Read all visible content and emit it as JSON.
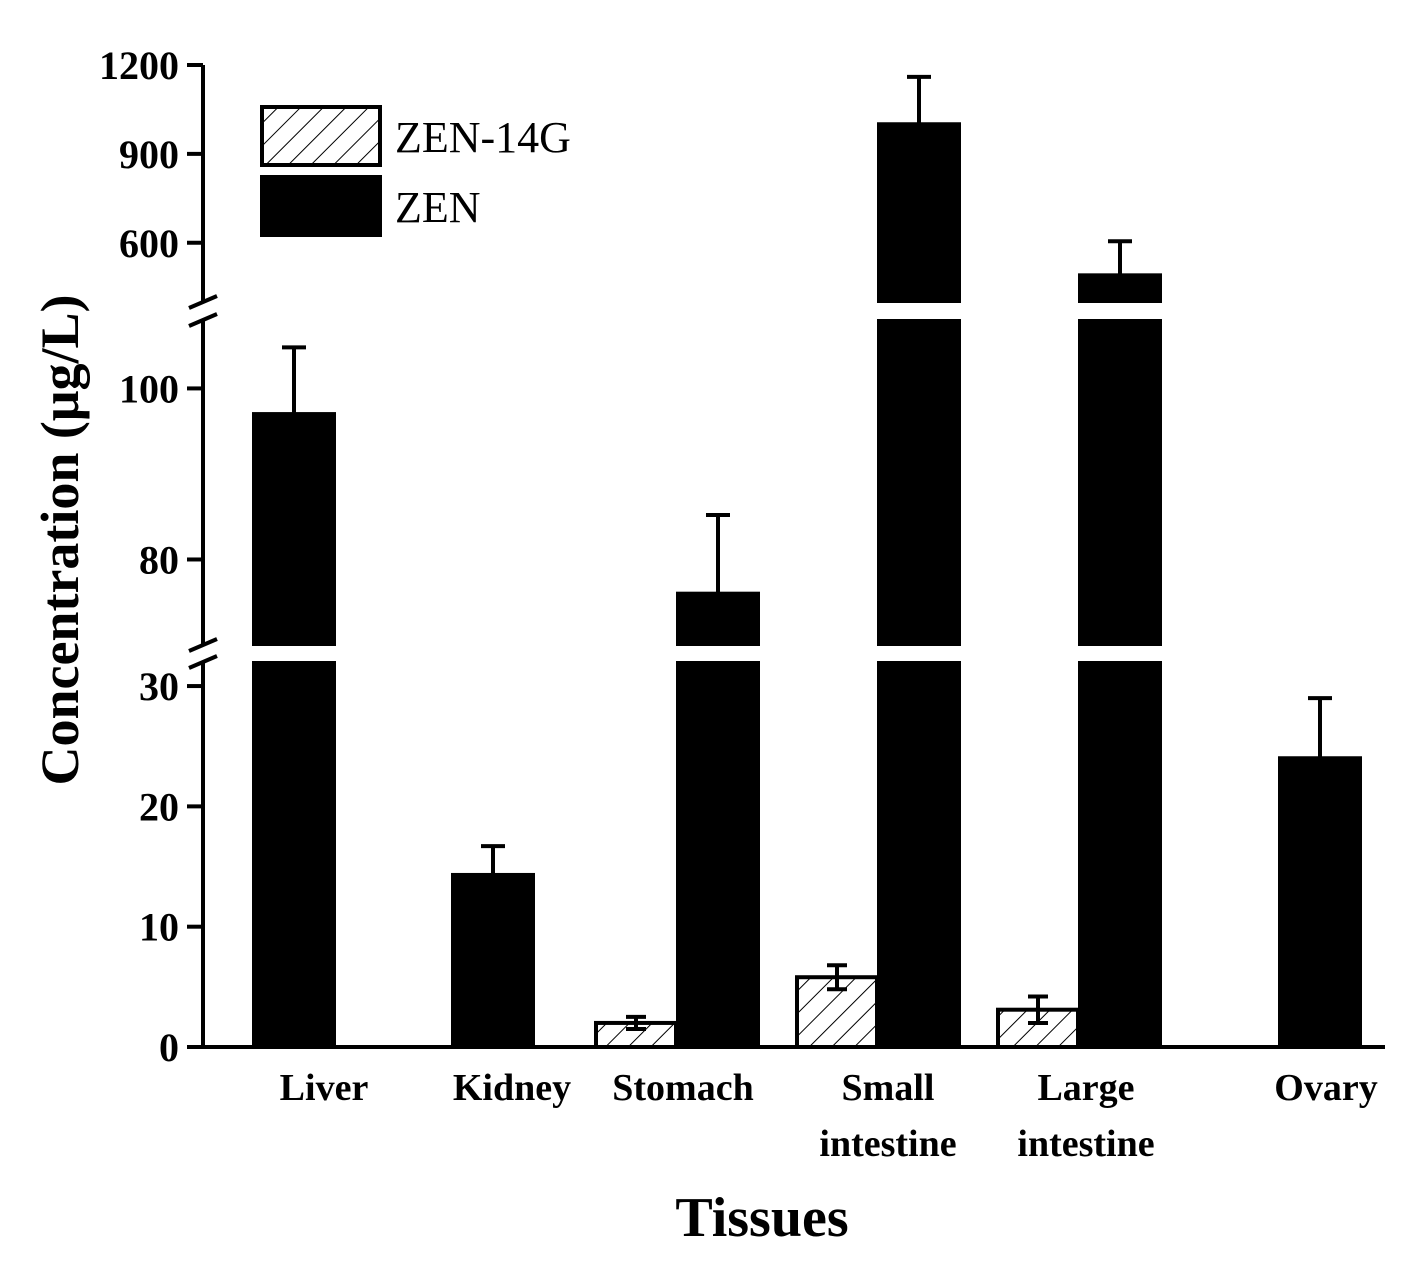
{
  "chart_data": {
    "type": "bar",
    "title": "",
    "xlabel": "Tissues",
    "ylabel": "Concentration (μg/L)",
    "categories": [
      [
        "Liver"
      ],
      [
        "Kidney"
      ],
      [
        "Stomach"
      ],
      [
        "Small",
        "intestine"
      ],
      [
        "Large",
        "intestine"
      ],
      [
        "Ovary"
      ]
    ],
    "series": [
      {
        "name": "ZEN-14G",
        "pattern": "hatched",
        "values": [
          null,
          null,
          2.0,
          5.8,
          3.1,
          null
        ],
        "errors": [
          null,
          null,
          0.5,
          1.0,
          1.1,
          null
        ]
      },
      {
        "name": "ZEN",
        "pattern": "solid",
        "values": [
          97,
          14.3,
          76,
          1000,
          490,
          24
        ],
        "errors": [
          7.8,
          2.4,
          9.2,
          160,
          115,
          5
        ]
      }
    ],
    "axis_segments": [
      {
        "range": [
          0,
          32
        ],
        "ticks": [
          0,
          10,
          20,
          30
        ]
      },
      {
        "range": [
          70,
          108
        ],
        "ticks": [
          80,
          100
        ]
      },
      {
        "range": [
          400,
          1200
        ],
        "ticks": [
          600,
          900,
          1200
        ]
      }
    ],
    "legend_position": "top-left",
    "grid": false
  }
}
